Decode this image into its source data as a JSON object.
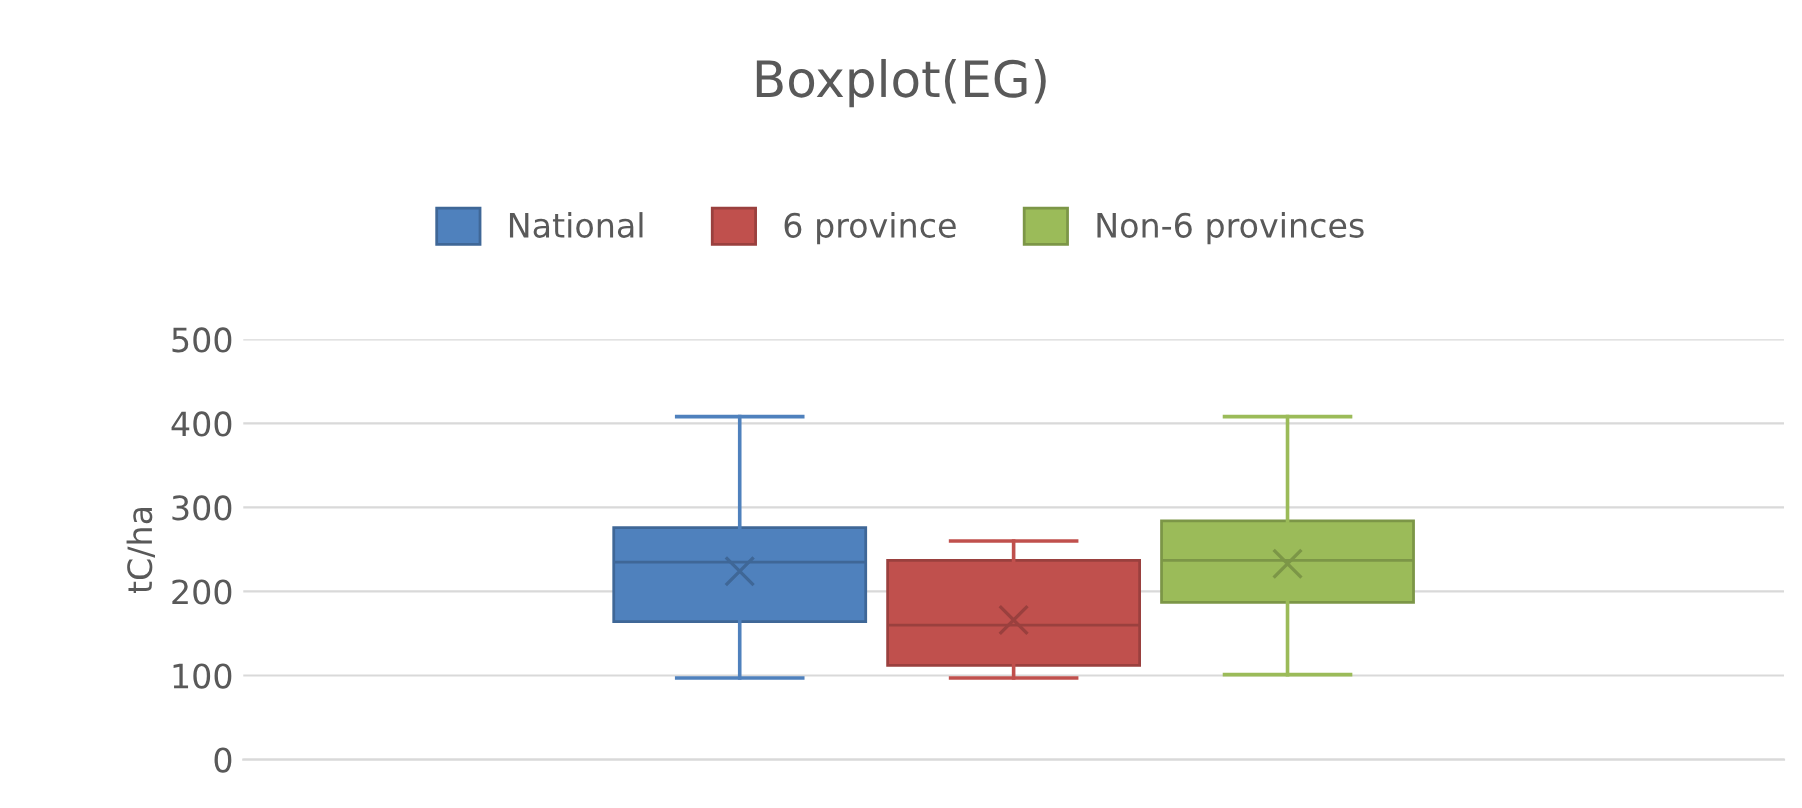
{
  "chart_data": {
    "type": "box",
    "title": "Boxplot(EG)",
    "ylabel": "tC/ha",
    "categories": [
      null
    ],
    "ylim": [
      0,
      500
    ],
    "yticks": [
      0,
      100,
      200,
      300,
      400,
      500
    ],
    "grid": "y",
    "legend": "top",
    "marker": "cross",
    "series": [
      {
        "name": "National",
        "color": "#4f81bd",
        "boxes": [
          {
            "low": 97,
            "q1": 164,
            "median": 235,
            "q3": 276,
            "high": 408,
            "mean": 224
          }
        ]
      },
      {
        "name": "6 province",
        "color": "#c0504d",
        "boxes": [
          {
            "low": 97,
            "q1": 112,
            "median": 160,
            "q3": 237,
            "high": 260,
            "mean": 166
          }
        ]
      },
      {
        "name": "Non-6 provinces",
        "color": "#9bbb59",
        "boxes": [
          {
            "low": 101,
            "q1": 187,
            "median": 237,
            "q3": 284,
            "high": 408,
            "mean": 233
          }
        ]
      }
    ]
  }
}
